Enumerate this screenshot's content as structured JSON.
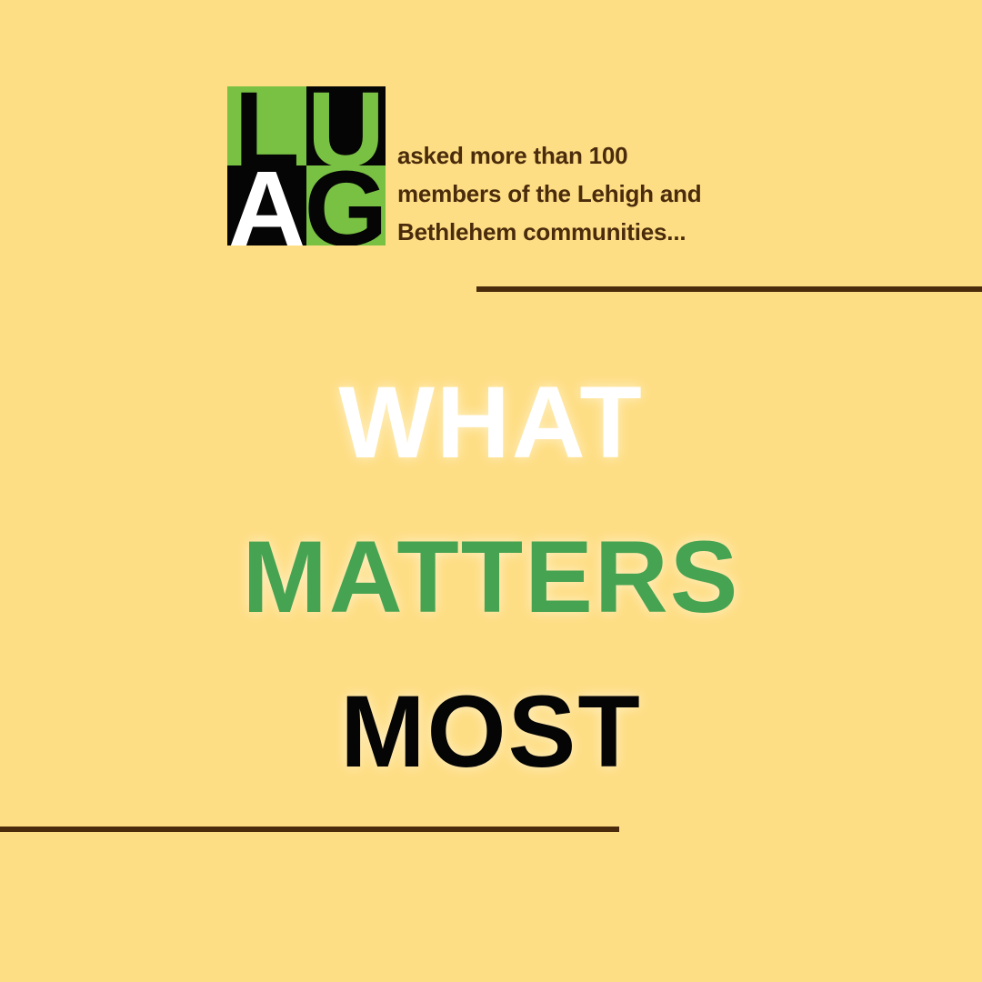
{
  "logo": {
    "letters": {
      "top_left": "L",
      "top_right": "U",
      "bottom_left": "A",
      "bottom_right": "G"
    }
  },
  "intro": {
    "lines": [
      "asked more than 100",
      "members of the Lehigh and",
      "Bethlehem communities..."
    ]
  },
  "headline": {
    "line1": "WHAT",
    "line2": "MATTERS",
    "line3": "MOST"
  },
  "colors": {
    "background": "#fede84",
    "brown": "#4a2b0c",
    "logo_green": "#79c143",
    "headline_green": "#45a351",
    "black": "#050505",
    "white": "#ffffff"
  }
}
